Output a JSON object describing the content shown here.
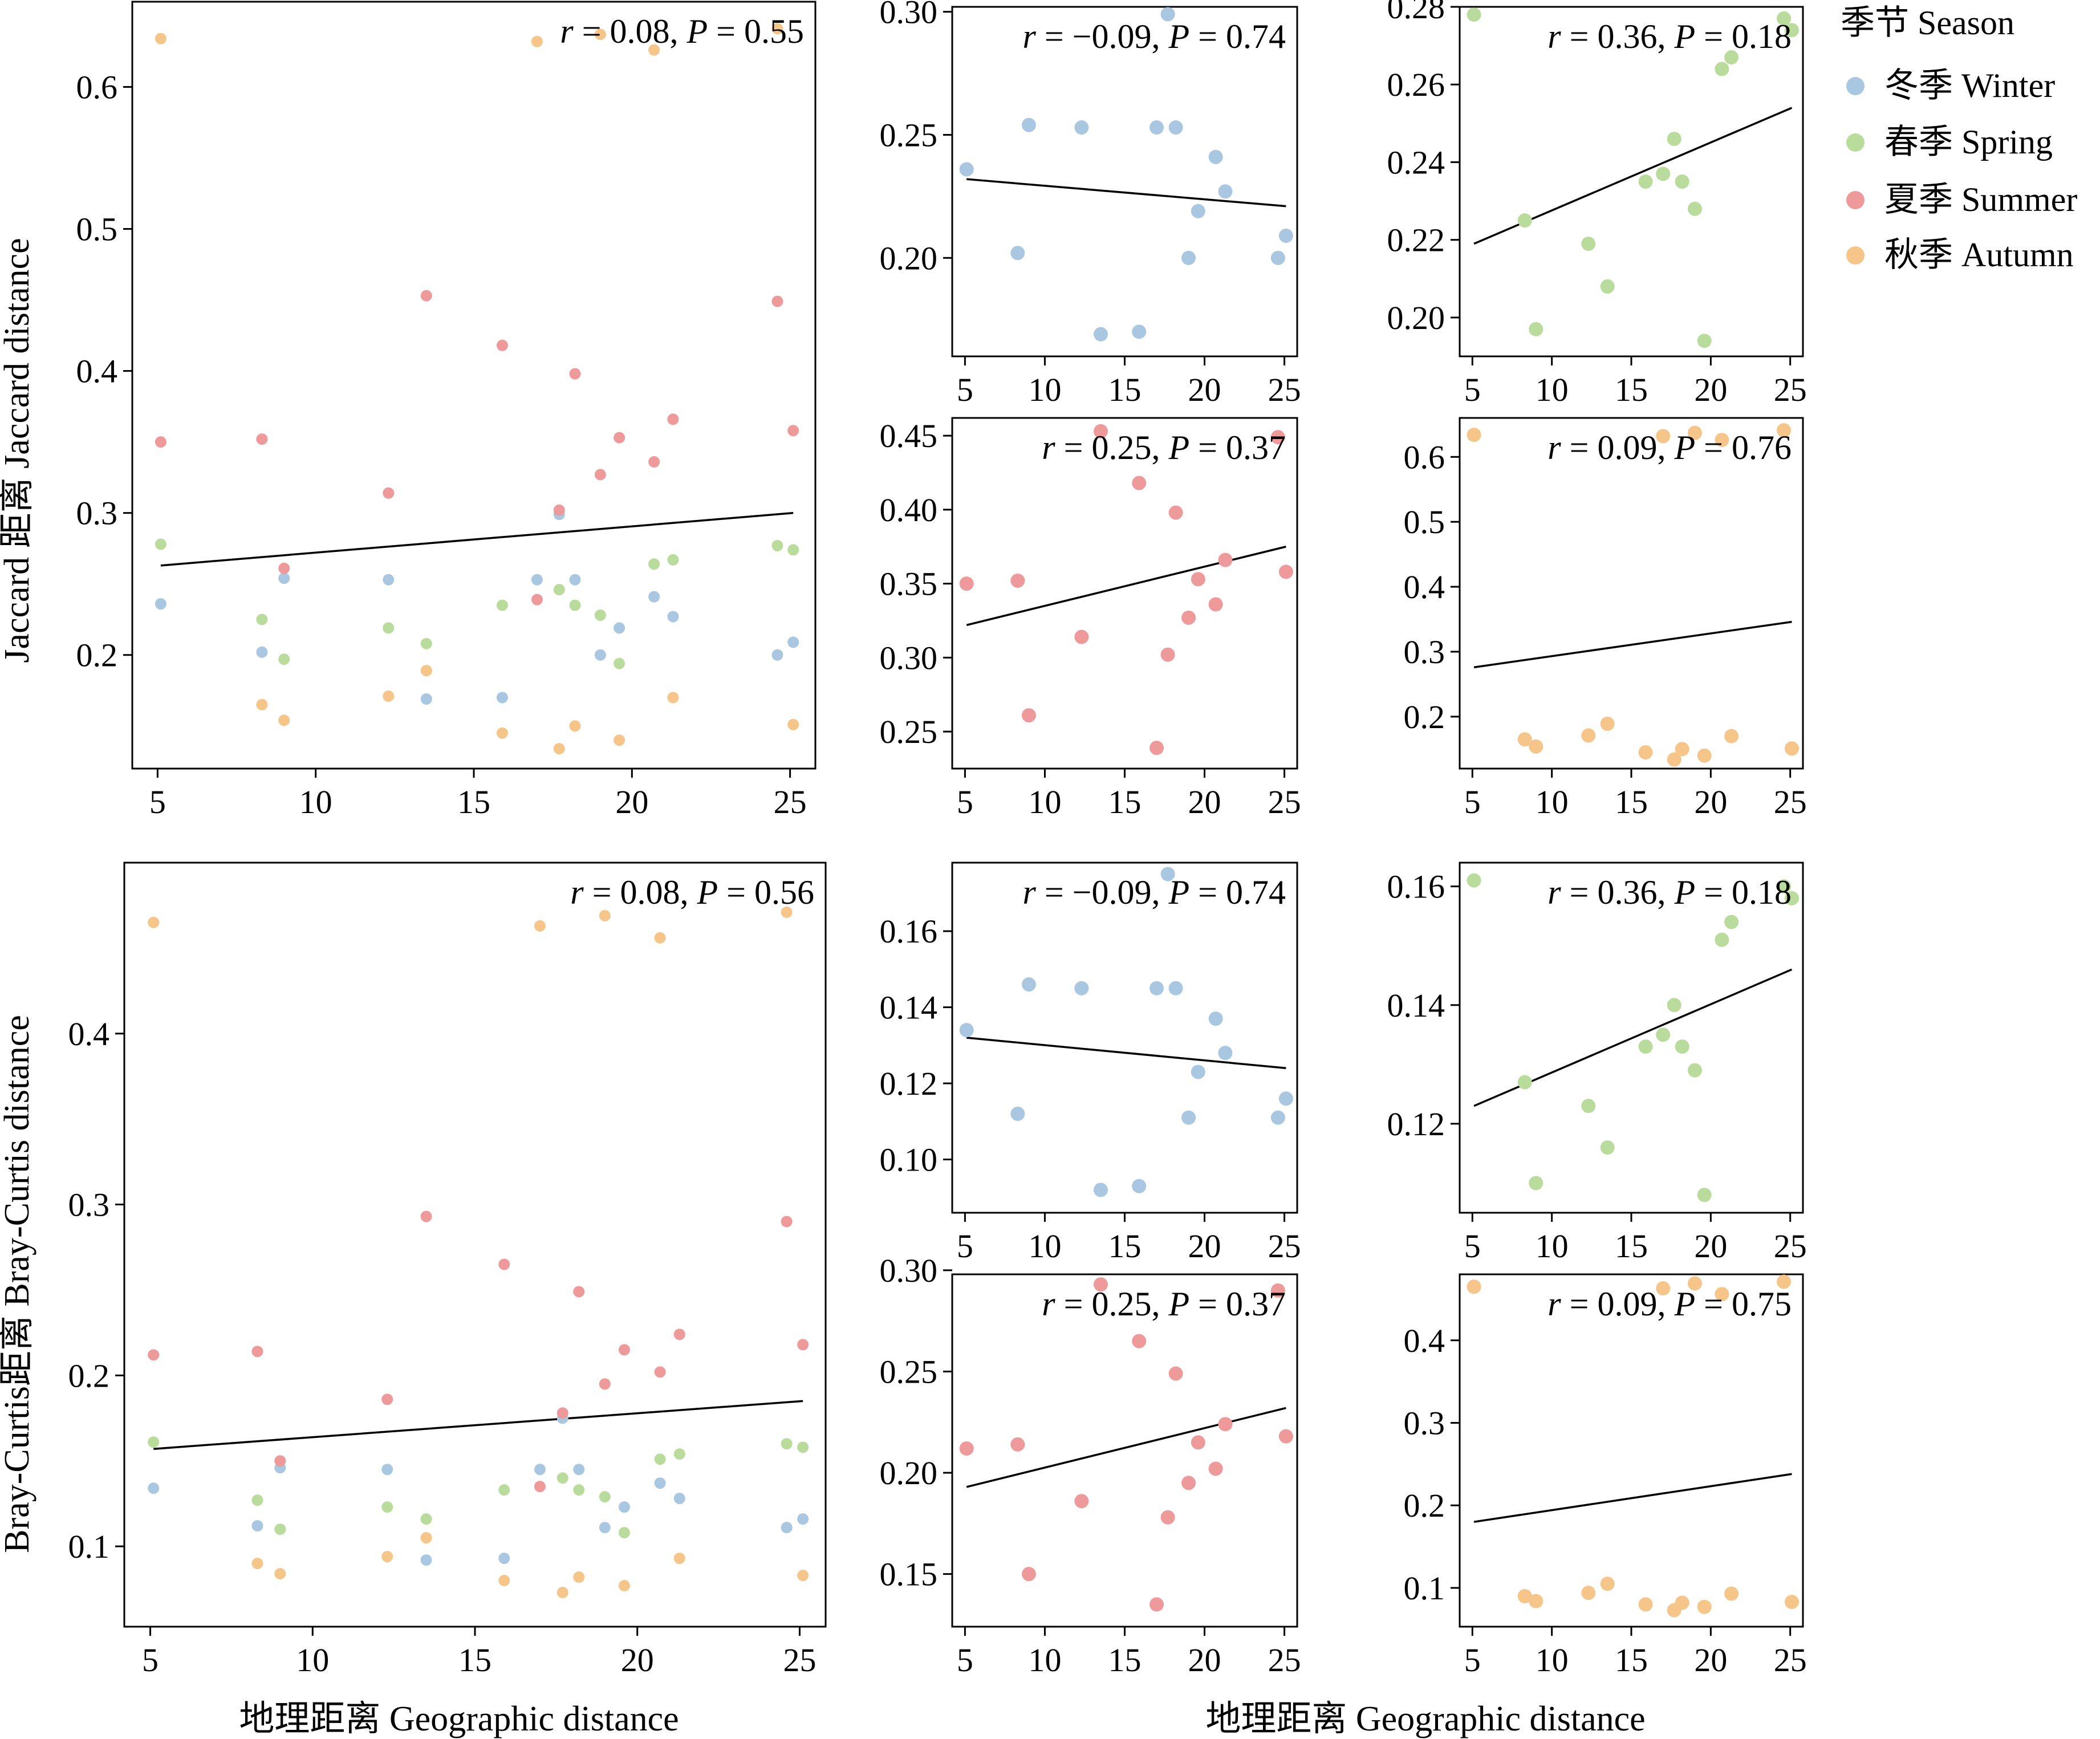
{
  "legend": {
    "title": "季节 Season",
    "items": [
      {
        "label": "冬季 Winter",
        "color": "#a9c7e0"
      },
      {
        "label": "春季 Spring",
        "color": "#b9dc9c"
      },
      {
        "label": "夏季 Summer",
        "color": "#ef9a9a"
      },
      {
        "label": "秋季 Autumn",
        "color": "#f5c58a"
      }
    ]
  },
  "labels": {
    "ylabel_top": "Jaccard 距离 Jaccard distance",
    "ylabel_bottom": "Bray-Curtis距离 Bray-Curtis distance",
    "xlabel_left": "地理距离 Geographic distance",
    "xlabel_right": "地理距离 Geographic distance"
  },
  "chart_data": [
    {
      "id": "jaccard-all",
      "type": "scatter",
      "annotation": {
        "r": "r = 0.08",
        "P": "P = 0.55"
      },
      "xticks": [
        5,
        10,
        15,
        20,
        25
      ],
      "yticks": [
        0.2,
        0.3,
        0.4,
        0.5,
        0.6
      ],
      "xlim": [
        4.2,
        25.8
      ],
      "ylim": [
        0.12,
        0.66
      ],
      "trend": [
        [
          5.1,
          0.263
        ],
        [
          25.1,
          0.3
        ]
      ],
      "series": [
        {
          "season": "winter",
          "x": [
            5.1,
            8.3,
            9.0,
            12.3,
            13.5,
            15.9,
            17.0,
            17.7,
            18.2,
            19.0,
            19.6,
            20.7,
            21.3,
            24.6,
            25.1
          ],
          "y": [
            0.236,
            0.202,
            0.254,
            0.253,
            0.169,
            0.17,
            0.253,
            0.299,
            0.253,
            0.2,
            0.219,
            0.241,
            0.227,
            0.2,
            0.209
          ]
        },
        {
          "season": "spring",
          "x": [
            5.1,
            8.3,
            9.0,
            12.3,
            13.5,
            15.9,
            17.7,
            18.2,
            19.0,
            19.6,
            20.7,
            21.3,
            24.6,
            25.1
          ],
          "y": [
            0.278,
            0.225,
            0.197,
            0.219,
            0.208,
            0.235,
            0.246,
            0.235,
            0.228,
            0.194,
            0.264,
            0.267,
            0.277,
            0.274
          ]
        },
        {
          "season": "summer",
          "x": [
            5.1,
            8.3,
            9.0,
            12.3,
            13.5,
            15.9,
            17.0,
            17.7,
            18.2,
            19.0,
            19.6,
            20.7,
            21.3,
            24.6,
            25.1
          ],
          "y": [
            0.35,
            0.352,
            0.261,
            0.314,
            0.453,
            0.418,
            0.239,
            0.302,
            0.398,
            0.327,
            0.353,
            0.336,
            0.366,
            0.449,
            0.358
          ]
        },
        {
          "season": "autumn",
          "x": [
            5.1,
            8.3,
            9.0,
            12.3,
            13.5,
            15.9,
            17.0,
            17.7,
            18.2,
            19.0,
            19.6,
            20.7,
            21.3,
            24.6,
            25.1
          ],
          "y": [
            0.634,
            0.165,
            0.154,
            0.171,
            0.189,
            0.145,
            0.632,
            0.134,
            0.15,
            0.637,
            0.14,
            0.626,
            0.17,
            0.641,
            0.151
          ]
        }
      ]
    },
    {
      "id": "jaccard-winter",
      "type": "scatter",
      "annotation": {
        "r": "r = −0.09",
        "P": "P = 0.74"
      },
      "xticks": [
        5,
        10,
        15,
        20,
        25
      ],
      "yticks": [
        0.2,
        0.25,
        0.3
      ],
      "xlim": [
        4.2,
        25.8
      ],
      "ylim": [
        0.16,
        0.302
      ],
      "trend": [
        [
          5.1,
          0.232
        ],
        [
          25.1,
          0.221
        ]
      ],
      "series": [
        {
          "season": "winter",
          "x": [
            5.1,
            8.3,
            9.0,
            12.3,
            13.5,
            15.9,
            17.0,
            17.7,
            18.2,
            19.0,
            19.6,
            20.7,
            21.3,
            24.6,
            25.1
          ],
          "y": [
            0.236,
            0.202,
            0.254,
            0.253,
            0.169,
            0.17,
            0.253,
            0.299,
            0.253,
            0.2,
            0.219,
            0.241,
            0.227,
            0.2,
            0.209
          ]
        }
      ]
    },
    {
      "id": "jaccard-spring",
      "type": "scatter",
      "annotation": {
        "r": "r = 0.36",
        "P": "P = 0.18"
      },
      "xticks": [
        5,
        10,
        15,
        20,
        25
      ],
      "yticks": [
        0.2,
        0.22,
        0.24,
        0.26,
        0.28
      ],
      "xlim": [
        4.2,
        25.8
      ],
      "ylim": [
        0.19,
        0.28
      ],
      "trend": [
        [
          5.1,
          0.219
        ],
        [
          25.1,
          0.254
        ]
      ],
      "series": [
        {
          "season": "spring",
          "x": [
            5.1,
            8.3,
            9.0,
            12.3,
            13.5,
            15.9,
            17.0,
            17.7,
            18.2,
            19.0,
            19.6,
            20.7,
            21.3,
            24.6,
            25.1
          ],
          "y": [
            0.278,
            0.225,
            0.197,
            0.219,
            0.208,
            0.235,
            0.237,
            0.246,
            0.235,
            0.228,
            0.194,
            0.264,
            0.267,
            0.277,
            0.274
          ]
        }
      ]
    },
    {
      "id": "jaccard-summer",
      "type": "scatter",
      "annotation": {
        "r": "r = 0.25",
        "P": "P = 0.37"
      },
      "xticks": [
        5,
        10,
        15,
        20,
        25
      ],
      "yticks": [
        0.25,
        0.3,
        0.35,
        0.4,
        0.45
      ],
      "xlim": [
        4.2,
        25.8
      ],
      "ylim": [
        0.225,
        0.462
      ],
      "trend": [
        [
          5.1,
          0.322
        ],
        [
          25.1,
          0.375
        ]
      ],
      "series": [
        {
          "season": "summer",
          "x": [
            5.1,
            8.3,
            9.0,
            12.3,
            13.5,
            15.9,
            17.0,
            17.7,
            18.2,
            19.0,
            19.6,
            20.7,
            21.3,
            24.6,
            25.1
          ],
          "y": [
            0.35,
            0.352,
            0.261,
            0.314,
            0.453,
            0.418,
            0.239,
            0.302,
            0.398,
            0.327,
            0.353,
            0.336,
            0.366,
            0.449,
            0.358
          ]
        }
      ]
    },
    {
      "id": "jaccard-autumn",
      "type": "scatter",
      "annotation": {
        "r": "r = 0.09",
        "P": "P = 0.76"
      },
      "xticks": [
        5,
        10,
        15,
        20,
        25
      ],
      "yticks": [
        0.2,
        0.3,
        0.4,
        0.5,
        0.6
      ],
      "xlim": [
        4.2,
        25.8
      ],
      "ylim": [
        0.12,
        0.66
      ],
      "trend": [
        [
          5.1,
          0.276
        ],
        [
          25.1,
          0.346
        ]
      ],
      "series": [
        {
          "season": "autumn",
          "x": [
            5.1,
            8.3,
            9.0,
            12.3,
            13.5,
            15.9,
            17.0,
            17.7,
            18.2,
            19.0,
            19.6,
            20.7,
            21.3,
            24.6,
            25.1
          ],
          "y": [
            0.634,
            0.165,
            0.154,
            0.171,
            0.189,
            0.145,
            0.632,
            0.134,
            0.15,
            0.637,
            0.14,
            0.626,
            0.17,
            0.641,
            0.151
          ]
        }
      ]
    },
    {
      "id": "braycurtis-all",
      "type": "scatter",
      "annotation": {
        "r": "r = 0.08",
        "P": "P = 0.56"
      },
      "xticks": [
        5,
        10,
        15,
        20,
        25
      ],
      "yticks": [
        0.1,
        0.2,
        0.3,
        0.4
      ],
      "xlim": [
        4.2,
        25.8
      ],
      "ylim": [
        0.053,
        0.5
      ],
      "trend": [
        [
          5.1,
          0.157
        ],
        [
          25.1,
          0.185
        ]
      ],
      "series": [
        {
          "season": "winter",
          "x": [
            5.1,
            8.3,
            9.0,
            12.3,
            13.5,
            15.9,
            17.0,
            17.7,
            18.2,
            19.0,
            19.6,
            20.7,
            21.3,
            24.6,
            25.1
          ],
          "y": [
            0.134,
            0.112,
            0.146,
            0.145,
            0.092,
            0.093,
            0.145,
            0.175,
            0.145,
            0.111,
            0.123,
            0.137,
            0.128,
            0.111,
            0.116
          ]
        },
        {
          "season": "spring",
          "x": [
            5.1,
            8.3,
            9.0,
            12.3,
            13.5,
            15.9,
            17.7,
            18.2,
            19.0,
            19.6,
            20.7,
            21.3,
            24.6,
            25.1
          ],
          "y": [
            0.161,
            0.127,
            0.11,
            0.123,
            0.116,
            0.133,
            0.14,
            0.133,
            0.129,
            0.108,
            0.151,
            0.154,
            0.16,
            0.158
          ]
        },
        {
          "season": "summer",
          "x": [
            5.1,
            8.3,
            9.0,
            12.3,
            13.5,
            15.9,
            17.0,
            17.7,
            18.2,
            19.0,
            19.6,
            20.7,
            21.3,
            24.6,
            25.1
          ],
          "y": [
            0.212,
            0.214,
            0.15,
            0.186,
            0.293,
            0.265,
            0.135,
            0.178,
            0.249,
            0.195,
            0.215,
            0.202,
            0.224,
            0.29,
            0.218
          ]
        },
        {
          "season": "autumn",
          "x": [
            5.1,
            8.3,
            9.0,
            12.3,
            13.5,
            15.9,
            17.0,
            17.7,
            18.2,
            19.0,
            19.6,
            20.7,
            21.3,
            24.6,
            25.1
          ],
          "y": [
            0.465,
            0.09,
            0.084,
            0.094,
            0.105,
            0.08,
            0.463,
            0.073,
            0.082,
            0.469,
            0.077,
            0.456,
            0.093,
            0.471,
            0.083
          ]
        }
      ]
    },
    {
      "id": "braycurtis-winter",
      "type": "scatter",
      "annotation": {
        "r": "r = −0.09",
        "P": "P = 0.74"
      },
      "xticks": [
        5,
        10,
        15,
        20,
        25
      ],
      "yticks": [
        0.1,
        0.12,
        0.14,
        0.16
      ],
      "xlim": [
        4.2,
        25.8
      ],
      "ylim": [
        0.086,
        0.178
      ],
      "trend": [
        [
          5.1,
          0.132
        ],
        [
          25.1,
          0.124
        ]
      ],
      "series": [
        {
          "season": "winter",
          "x": [
            5.1,
            8.3,
            9.0,
            12.3,
            13.5,
            15.9,
            17.0,
            17.7,
            18.2,
            19.0,
            19.6,
            20.7,
            21.3,
            24.6,
            25.1
          ],
          "y": [
            0.134,
            0.112,
            0.146,
            0.145,
            0.092,
            0.093,
            0.145,
            0.175,
            0.145,
            0.111,
            0.123,
            0.137,
            0.128,
            0.111,
            0.116
          ]
        }
      ]
    },
    {
      "id": "braycurtis-spring",
      "type": "scatter",
      "annotation": {
        "r": "r = 0.36",
        "P": "P = 0.18"
      },
      "xticks": [
        5,
        10,
        15,
        20,
        25
      ],
      "yticks": [
        0.12,
        0.14,
        0.16
      ],
      "xlim": [
        4.2,
        25.8
      ],
      "ylim": [
        0.105,
        0.164
      ],
      "trend": [
        [
          5.1,
          0.123
        ],
        [
          25.1,
          0.146
        ]
      ],
      "series": [
        {
          "season": "spring",
          "x": [
            5.1,
            8.3,
            9.0,
            12.3,
            13.5,
            15.9,
            17.0,
            17.7,
            18.2,
            19.0,
            19.6,
            20.7,
            21.3,
            24.6,
            25.1
          ],
          "y": [
            0.161,
            0.127,
            0.11,
            0.123,
            0.116,
            0.133,
            0.135,
            0.14,
            0.133,
            0.129,
            0.108,
            0.151,
            0.154,
            0.16,
            0.158
          ]
        }
      ]
    },
    {
      "id": "braycurtis-summer",
      "type": "scatter",
      "annotation": {
        "r": "r = 0.25",
        "P": "P = 0.37"
      },
      "xticks": [
        5,
        10,
        15,
        20,
        25
      ],
      "yticks": [
        0.15,
        0.2,
        0.25,
        0.3
      ],
      "xlim": [
        4.2,
        25.8
      ],
      "ylim": [
        0.124,
        0.298
      ],
      "trend": [
        [
          5.1,
          0.193
        ],
        [
          25.1,
          0.232
        ]
      ],
      "series": [
        {
          "season": "summer",
          "x": [
            5.1,
            8.3,
            9.0,
            12.3,
            13.5,
            15.9,
            17.0,
            17.7,
            18.2,
            19.0,
            19.6,
            20.7,
            21.3,
            24.6,
            25.1
          ],
          "y": [
            0.212,
            0.214,
            0.15,
            0.186,
            0.293,
            0.265,
            0.135,
            0.178,
            0.249,
            0.195,
            0.215,
            0.202,
            0.224,
            0.29,
            0.218
          ]
        }
      ]
    },
    {
      "id": "braycurtis-autumn",
      "type": "scatter",
      "annotation": {
        "r": "r = 0.09",
        "P": "P = 0.75"
      },
      "xticks": [
        5,
        10,
        15,
        20,
        25
      ],
      "yticks": [
        0.1,
        0.2,
        0.3,
        0.4
      ],
      "xlim": [
        4.2,
        25.8
      ],
      "ylim": [
        0.053,
        0.48
      ],
      "trend": [
        [
          5.1,
          0.18
        ],
        [
          25.1,
          0.238
        ]
      ],
      "series": [
        {
          "season": "autumn",
          "x": [
            5.1,
            8.3,
            9.0,
            12.3,
            13.5,
            15.9,
            17.0,
            17.7,
            18.2,
            19.0,
            19.6,
            20.7,
            21.3,
            24.6,
            25.1
          ],
          "y": [
            0.465,
            0.09,
            0.084,
            0.094,
            0.105,
            0.08,
            0.463,
            0.073,
            0.082,
            0.469,
            0.077,
            0.456,
            0.093,
            0.471,
            0.083
          ]
        }
      ]
    }
  ]
}
